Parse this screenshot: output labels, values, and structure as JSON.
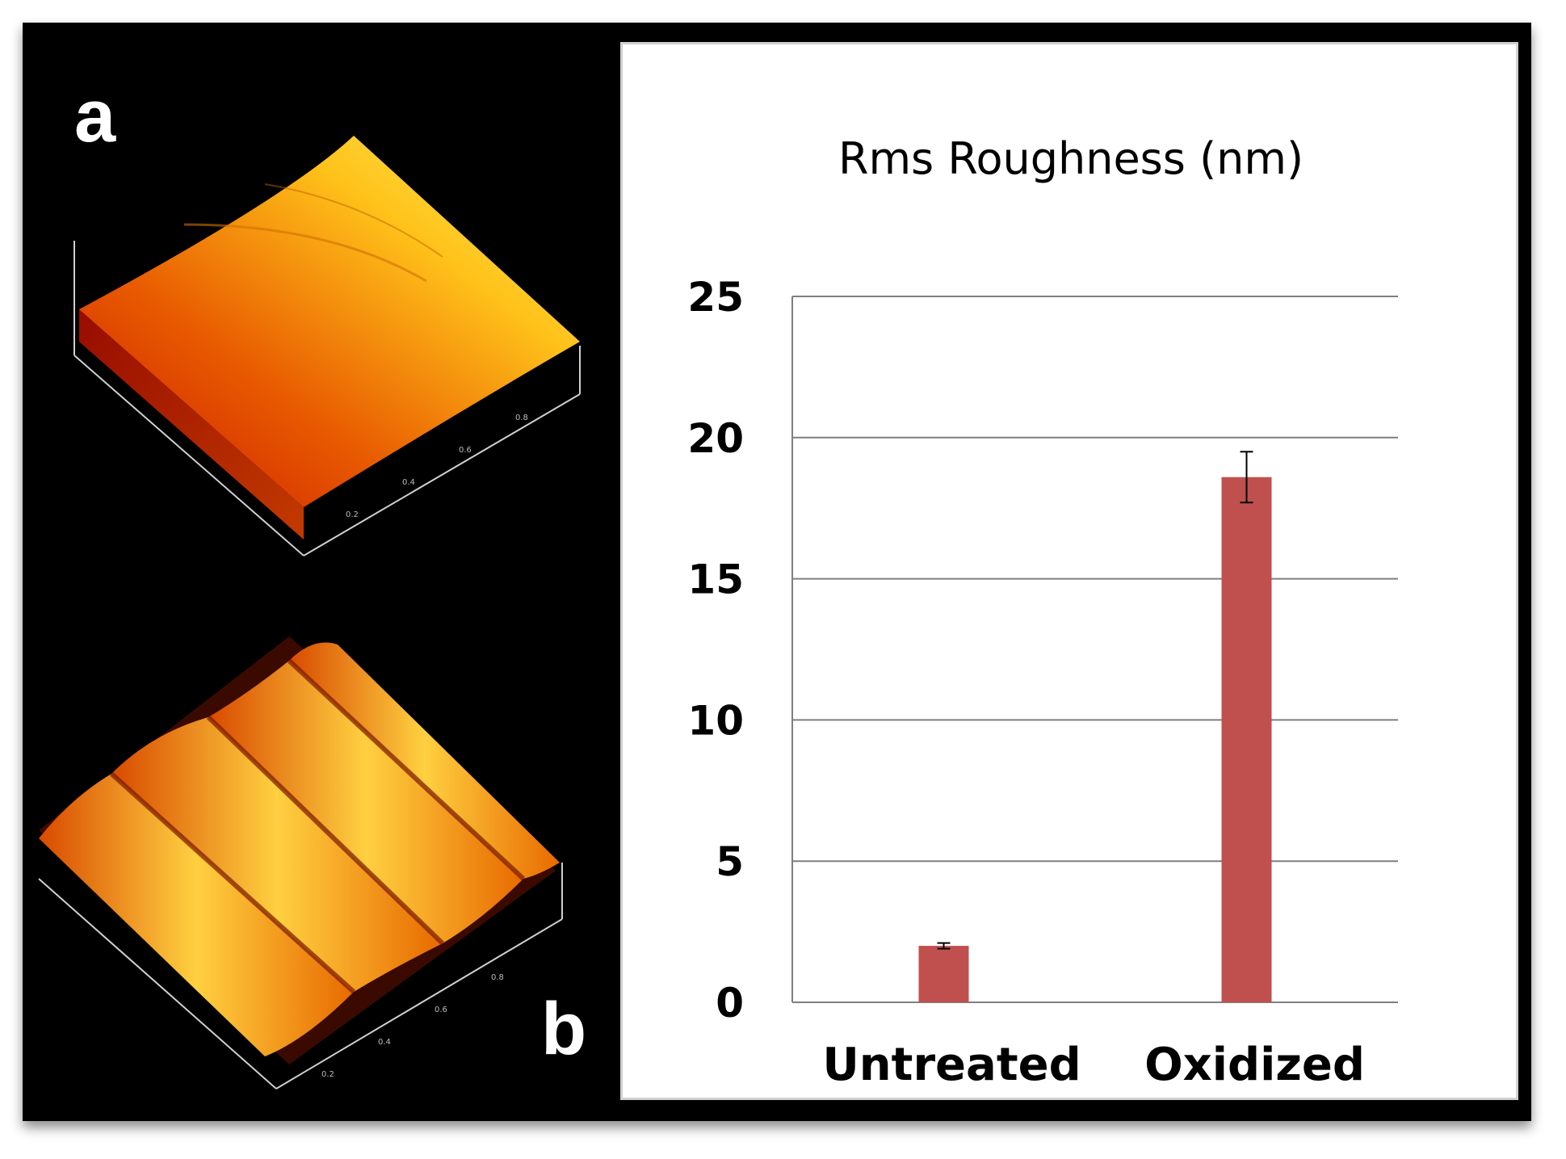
{
  "panels": {
    "a_label": "a",
    "b_label": "b"
  },
  "colors": {
    "bar": "#c0504d",
    "grid": "#7f7f7f",
    "background": "#000000"
  },
  "chart_data": {
    "type": "bar",
    "title": "Rms  Roughness (nm)",
    "categories": [
      "Untreated",
      "Oxidized"
    ],
    "values": [
      2.0,
      18.6
    ],
    "errors": [
      0.1,
      0.9
    ],
    "yticks": [
      0,
      5,
      10,
      15,
      20,
      25
    ],
    "ylim": [
      0,
      25
    ],
    "xlabel": "",
    "ylabel": "",
    "grid": true
  }
}
